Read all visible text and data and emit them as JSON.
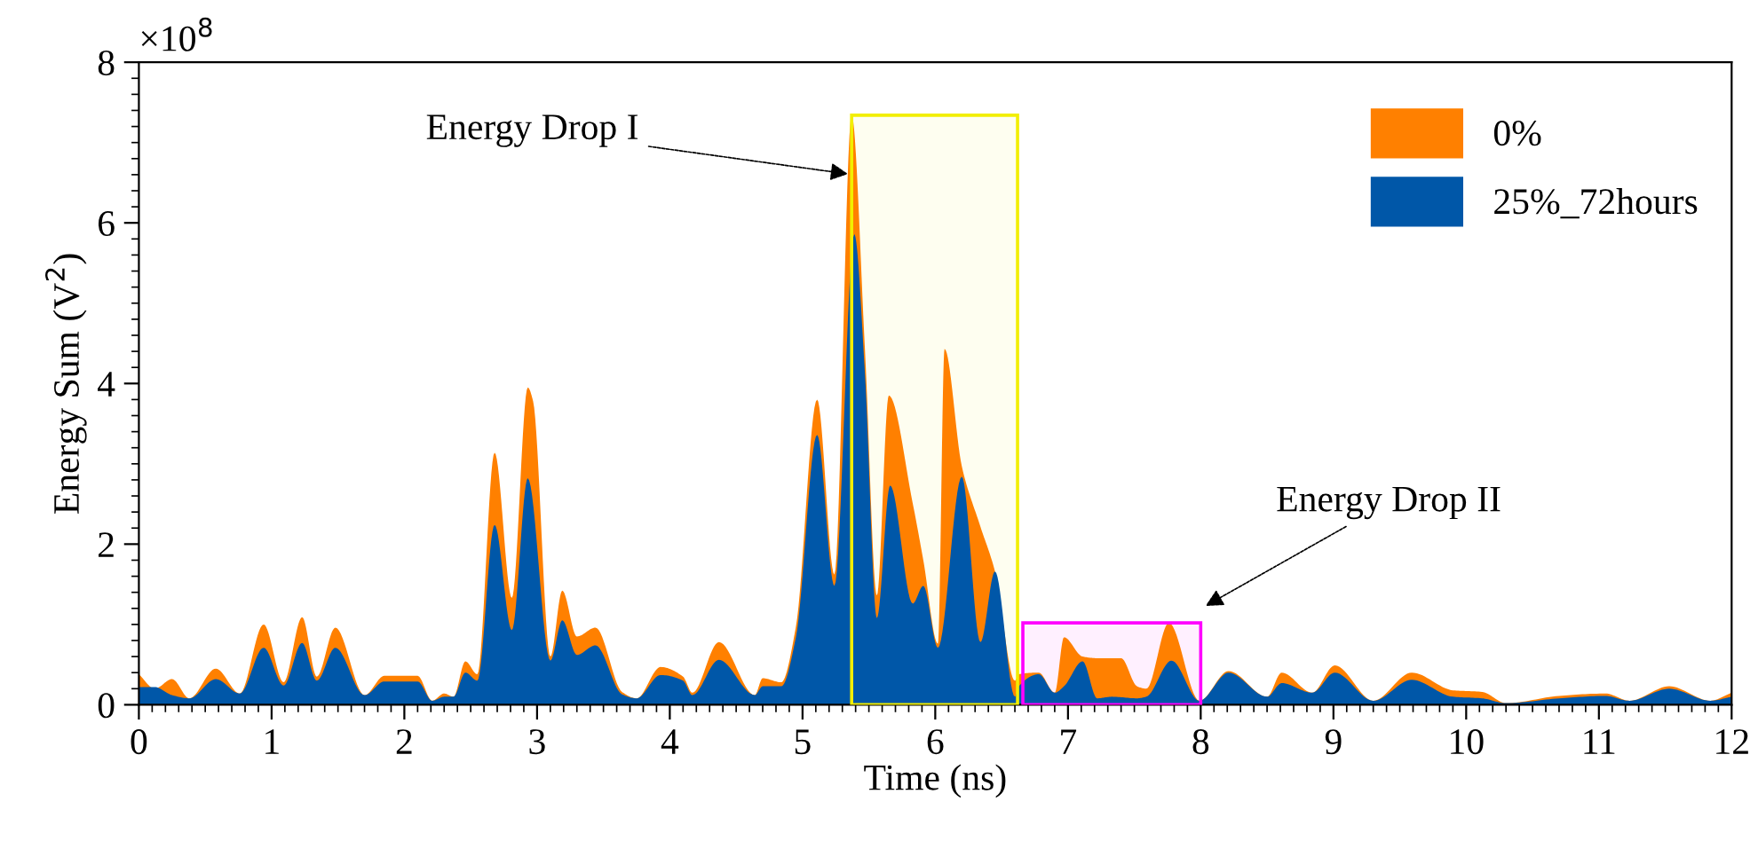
{
  "chart_data": {
    "type": "area",
    "xlabel": "Time (ns)",
    "ylabel": "Energy Sum (V$^{2}$)",
    "xlim": [
      0,
      12
    ],
    "xticks": [
      0,
      1,
      2,
      3,
      4,
      5,
      6,
      7,
      8,
      9,
      10,
      11,
      12
    ],
    "ylim": [
      0,
      8
    ],
    "yticks": [
      0,
      2,
      4,
      6,
      8
    ],
    "grid": false,
    "legend": "top right",
    "series": [
      {
        "name": "0%",
        "color": "#ff8000",
        "x": [
          0,
          0.12,
          0.25,
          0.38,
          0.58,
          0.76,
          0.94,
          1.09,
          1.23,
          1.34,
          1.48,
          1.7,
          1.85,
          2.1,
          2.21,
          2.3,
          2.37,
          2.46,
          2.55,
          2.68,
          2.81,
          2.93,
          2.97,
          3.1,
          3.19,
          3.3,
          3.44,
          3.64,
          3.75,
          3.93,
          4.1,
          4.17,
          4.37,
          4.64,
          4.7,
          4.84,
          4.95,
          5.11,
          5.24,
          5.37,
          5.47,
          5.56,
          5.65,
          5.83,
          5.91,
          6.02,
          6.07,
          6.2,
          6.34,
          6.45,
          6.6,
          6.63,
          6.78,
          6.9,
          6.97,
          7.11,
          7.22,
          7.4,
          7.52,
          7.59,
          7.76,
          7.99,
          8.21,
          8.5,
          8.61,
          8.84,
          9.01,
          9.3,
          9.59,
          9.9,
          10.12,
          10.3,
          10.7,
          11.05,
          11.23,
          11.53,
          11.84,
          12
        ],
        "values": [
          0.38,
          0.2,
          0.32,
          0.08,
          0.45,
          0.14,
          1.0,
          0.28,
          1.09,
          0.35,
          0.96,
          0.12,
          0.36,
          0.36,
          0.05,
          0.14,
          0.1,
          0.54,
          0.38,
          3.14,
          1.33,
          3.95,
          3.78,
          0.6,
          1.42,
          0.85,
          0.96,
          0.16,
          0.08,
          0.47,
          0.35,
          0.15,
          0.78,
          0.12,
          0.33,
          0.28,
          0.97,
          3.8,
          1.62,
          7.34,
          4.43,
          1.36,
          3.85,
          2.51,
          1.8,
          0.76,
          4.43,
          2.97,
          2.22,
          1.66,
          0.3,
          0.38,
          0.4,
          0.15,
          0.84,
          0.6,
          0.58,
          0.58,
          0.23,
          0.2,
          1.02,
          0.05,
          0.42,
          0.1,
          0.4,
          0.15,
          0.49,
          0.05,
          0.4,
          0.18,
          0.16,
          0.02,
          0.11,
          0.14,
          0.05,
          0.23,
          0.05,
          0.15
        ]
      },
      {
        "name": "25%_72hours",
        "color": "#0057a8",
        "x": [
          0,
          0.12,
          0.25,
          0.38,
          0.58,
          0.76,
          0.94,
          1.09,
          1.23,
          1.34,
          1.48,
          1.7,
          1.85,
          2.1,
          2.21,
          2.3,
          2.37,
          2.46,
          2.55,
          2.68,
          2.81,
          2.93,
          3.1,
          3.19,
          3.3,
          3.44,
          3.64,
          3.75,
          3.93,
          4.1,
          4.17,
          4.37,
          4.64,
          4.7,
          4.84,
          4.95,
          5.11,
          5.24,
          5.39,
          5.47,
          5.56,
          5.66,
          5.83,
          5.91,
          6.02,
          6.2,
          6.34,
          6.45,
          6.6,
          6.63,
          6.78,
          6.9,
          6.97,
          7.11,
          7.22,
          7.33,
          7.52,
          7.59,
          7.78,
          7.99,
          8.21,
          8.5,
          8.61,
          8.84,
          9.01,
          9.3,
          9.59,
          9.9,
          10.12,
          10.3,
          10.7,
          11.05,
          11.23,
          11.53,
          11.84,
          12
        ],
        "values": [
          0.22,
          0.22,
          0.12,
          0.08,
          0.32,
          0.14,
          0.71,
          0.24,
          0.77,
          0.3,
          0.71,
          0.12,
          0.29,
          0.29,
          0.05,
          0.1,
          0.1,
          0.4,
          0.3,
          2.24,
          0.93,
          2.82,
          0.55,
          1.05,
          0.62,
          0.74,
          0.13,
          0.08,
          0.37,
          0.3,
          0.12,
          0.56,
          0.12,
          0.23,
          0.23,
          0.84,
          3.36,
          1.48,
          5.86,
          4.13,
          1.08,
          2.73,
          1.26,
          1.48,
          0.71,
          2.84,
          0.78,
          1.66,
          0.1,
          0.23,
          0.38,
          0.15,
          0.23,
          0.54,
          0.08,
          0.1,
          0.08,
          0.1,
          0.55,
          0.05,
          0.4,
          0.1,
          0.27,
          0.15,
          0.4,
          0.05,
          0.31,
          0.1,
          0.08,
          0.02,
          0.08,
          0.11,
          0.05,
          0.2,
          0.05,
          0.1
        ]
      }
    ],
    "bands": [
      {
        "axis": "x",
        "from": 5.37,
        "to": 6.62,
        "color": "#f2ee00"
      },
      {
        "axis": "x",
        "from": 6.66,
        "to": 8.0,
        "color": "#ff00ff"
      }
    ],
    "annotations": [
      "×10$^{8}$",
      {
        "text": "Energy Drop I",
        "x": 5.38,
        "y": 6.6
      },
      "Energy Drop II"
    ]
  }
}
